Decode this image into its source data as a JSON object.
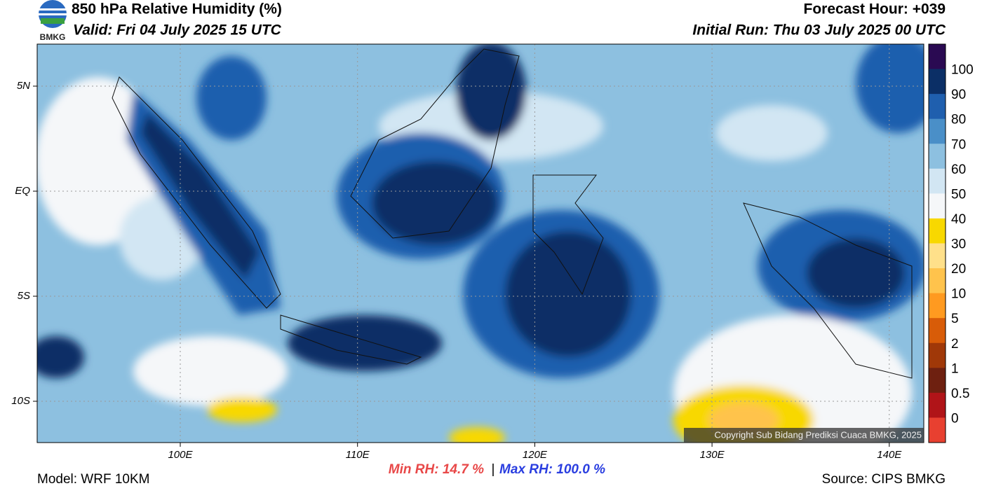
{
  "header": {
    "logo": "BMKG",
    "title": "850 hPa Relative Humidity (%)",
    "valid": "Valid: Fri 04 July 2025 15 UTC",
    "forecast_hour": "Forecast Hour: +039",
    "initial_run": "Initial Run: Thu 03 July 2025 00 UTC"
  },
  "map": {
    "lat_labels": [
      "5N",
      "EQ",
      "5S",
      "10S"
    ],
    "lon_labels": [
      "100E",
      "110E",
      "120E",
      "130E",
      "140E"
    ],
    "copyright": "Copyright Sub Bidang Prediksi Cuaca BMKG, 2025"
  },
  "colorbar": {
    "labels": [
      "100",
      "90",
      "80",
      "70",
      "60",
      "50",
      "40",
      "30",
      "20",
      "10",
      "5",
      "2",
      "1",
      "0.5",
      "0"
    ],
    "colors": [
      "#2a0a52",
      "#0b2f66",
      "#1f5fae",
      "#4a8fc8",
      "#8dc0e0",
      "#d2e6f3",
      "#f5f7f9",
      "#f8d800",
      "#ffe08a",
      "#ffc34c",
      "#ff9a20",
      "#d85c08",
      "#a03808",
      "#6e2010",
      "#b01418",
      "#e84030"
    ]
  },
  "footer": {
    "model": "Model: WRF 10KM",
    "min_rh": "Min RH:  14.7 %",
    "separator": "|",
    "max_rh": "Max RH: 100.0 %",
    "source": "Source: CIPS BMKG"
  }
}
